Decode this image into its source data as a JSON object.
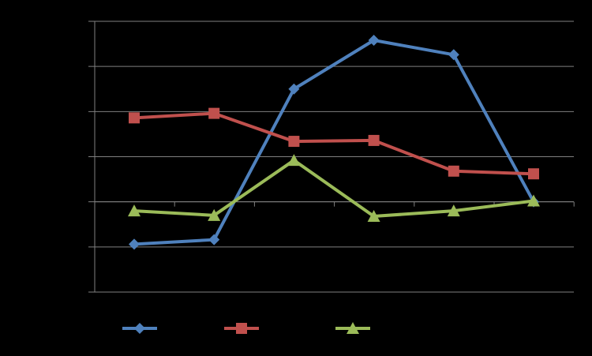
{
  "chart_data": {
    "type": "line",
    "background": "#000000",
    "grid": true,
    "legend_placement": "bottom",
    "categories": [
      "",
      "",
      "",
      "",
      "",
      ""
    ],
    "ylim": [
      -1.0,
      2.0
    ],
    "series": [
      {
        "name": "",
        "color": "#4F81BD",
        "marker": "diamond",
        "values": [
          -0.47,
          -0.42,
          1.25,
          1.79,
          1.63,
          0.0
        ]
      },
      {
        "name": "",
        "color": "#C0504D",
        "marker": "square",
        "values": [
          0.93,
          0.98,
          0.67,
          0.68,
          0.34,
          0.31
        ]
      },
      {
        "name": "",
        "color": "#9BBB59",
        "marker": "triangle",
        "values": [
          -0.1,
          -0.15,
          0.46,
          -0.16,
          -0.1,
          0.01
        ]
      }
    ]
  }
}
